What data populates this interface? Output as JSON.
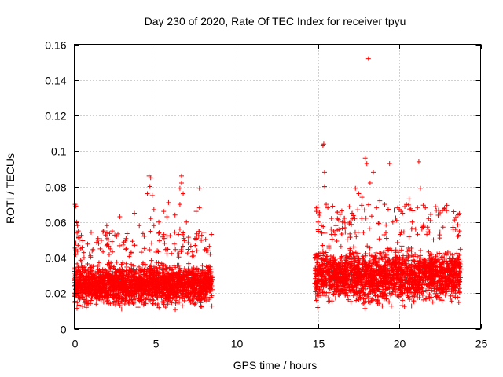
{
  "chart_data": {
    "type": "scatter",
    "title": "Day 230 of 2020, Rate Of TEC Index for receiver tpyu",
    "xlabel": "GPS time / hours",
    "ylabel": "ROTI / TECUs",
    "xlim": [
      0,
      25
    ],
    "ylim": [
      0,
      0.16
    ],
    "xticks": [
      0,
      5,
      10,
      15,
      20,
      25
    ],
    "xtick_labels": [
      "0",
      "5",
      "10",
      "15",
      "20",
      "25"
    ],
    "yticks": [
      0,
      0.02,
      0.04,
      0.06,
      0.08,
      0.1,
      0.12,
      0.14,
      0.16
    ],
    "ytick_labels": [
      "0",
      "0.02",
      "0.04",
      "0.06",
      "0.08",
      "0.1",
      "0.12",
      "0.14",
      "0.16"
    ],
    "grid": true,
    "marker": "plus",
    "color": "#ff0000",
    "data_segments": [
      {
        "x_start": 0.0,
        "x_end": 8.5,
        "typical_y": [
          0.01,
          0.04
        ]
      },
      {
        "x_start": 14.8,
        "x_end": 23.8,
        "typical_y": [
          0.01,
          0.05
        ]
      }
    ],
    "points": [
      [
        0.05,
        0.07
      ],
      [
        0.1,
        0.069
      ],
      [
        0.15,
        0.06
      ],
      [
        0.2,
        0.058
      ],
      [
        0.25,
        0.055
      ],
      [
        0.3,
        0.05
      ],
      [
        0.4,
        0.045
      ],
      [
        0.6,
        0.04
      ],
      [
        1.0,
        0.041
      ],
      [
        1.5,
        0.048
      ],
      [
        1.8,
        0.055
      ],
      [
        2.0,
        0.058
      ],
      [
        2.1,
        0.05
      ],
      [
        2.6,
        0.052
      ],
      [
        2.8,
        0.063
      ],
      [
        3.2,
        0.045
      ],
      [
        3.5,
        0.043
      ],
      [
        3.7,
        0.065
      ],
      [
        4.0,
        0.058
      ],
      [
        4.3,
        0.052
      ],
      [
        4.6,
        0.086
      ],
      [
        4.7,
        0.085
      ],
      [
        4.65,
        0.08
      ],
      [
        4.5,
        0.076
      ],
      [
        4.8,
        0.075
      ],
      [
        4.9,
        0.067
      ],
      [
        4.7,
        0.062
      ],
      [
        4.9,
        0.058
      ],
      [
        5.2,
        0.06
      ],
      [
        5.5,
        0.066
      ],
      [
        5.7,
        0.063
      ],
      [
        5.8,
        0.071
      ],
      [
        6.2,
        0.064
      ],
      [
        6.5,
        0.056
      ],
      [
        6.5,
        0.07
      ],
      [
        6.5,
        0.079
      ],
      [
        6.6,
        0.086
      ],
      [
        6.6,
        0.082
      ],
      [
        6.7,
        0.076
      ],
      [
        6.9,
        0.06
      ],
      [
        7.5,
        0.066
      ],
      [
        7.7,
        0.079
      ],
      [
        7.7,
        0.068
      ],
      [
        8.1,
        0.045
      ],
      [
        8.3,
        0.035
      ],
      [
        14.9,
        0.066
      ],
      [
        15.0,
        0.06
      ],
      [
        15.2,
        0.058
      ],
      [
        15.3,
        0.103
      ],
      [
        15.35,
        0.104
      ],
      [
        15.4,
        0.088
      ],
      [
        15.4,
        0.08
      ],
      [
        15.5,
        0.07
      ],
      [
        15.6,
        0.068
      ],
      [
        15.8,
        0.056
      ],
      [
        16.1,
        0.058
      ],
      [
        16.5,
        0.06
      ],
      [
        16.8,
        0.05
      ],
      [
        17.1,
        0.065
      ],
      [
        17.3,
        0.079
      ],
      [
        17.5,
        0.076
      ],
      [
        17.7,
        0.074
      ],
      [
        17.9,
        0.096
      ],
      [
        18.0,
        0.093
      ],
      [
        18.1,
        0.152
      ],
      [
        18.2,
        0.082
      ],
      [
        18.4,
        0.088
      ],
      [
        18.6,
        0.068
      ],
      [
        18.8,
        0.072
      ],
      [
        19.1,
        0.07
      ],
      [
        19.4,
        0.093
      ],
      [
        19.6,
        0.06
      ],
      [
        19.9,
        0.068
      ],
      [
        20.0,
        0.067
      ],
      [
        20.1,
        0.066
      ],
      [
        20.2,
        0.065
      ],
      [
        20.6,
        0.073
      ],
      [
        20.8,
        0.06
      ],
      [
        21.0,
        0.056
      ],
      [
        21.2,
        0.094
      ],
      [
        21.3,
        0.079
      ],
      [
        21.6,
        0.068
      ],
      [
        21.8,
        0.062
      ],
      [
        22.1,
        0.05
      ],
      [
        22.6,
        0.04
      ],
      [
        23.0,
        0.034
      ],
      [
        23.3,
        0.057
      ],
      [
        23.6,
        0.052
      ],
      [
        23.7,
        0.055
      ]
    ]
  }
}
